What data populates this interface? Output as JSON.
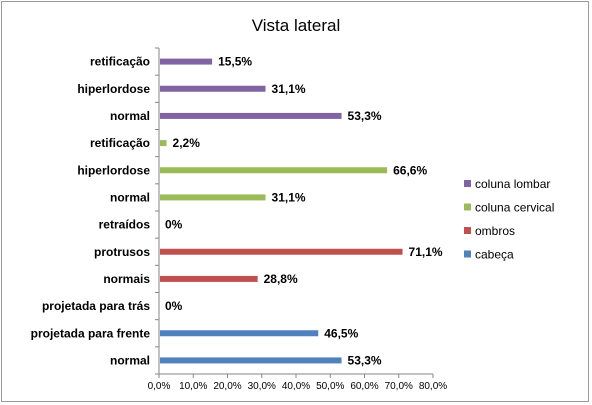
{
  "chart_data": {
    "type": "bar",
    "orientation": "horizontal",
    "title": "Vista lateral",
    "xlim": [
      0,
      80
    ],
    "xticks": [
      "0,0%",
      "10,0%",
      "20,0%",
      "30,0%",
      "40,0%",
      "50,0%",
      "60,0%",
      "70,0%",
      "80,0%"
    ],
    "grid": false,
    "legend_position": "right",
    "categories": [
      "retificação",
      "hiperlordose",
      "normal",
      "retificação",
      "hiperlordose",
      "normal",
      "retraídos",
      "protrusos",
      "normais",
      "projetada para trás",
      "projetada para frente",
      "normal"
    ],
    "series": [
      {
        "name": "coluna lombar",
        "color": "#8064a2",
        "values": [
          15.5,
          31.1,
          53.3,
          null,
          null,
          null,
          null,
          null,
          null,
          null,
          null,
          null
        ]
      },
      {
        "name": "coluna cervical",
        "color": "#9bbb59",
        "values": [
          null,
          null,
          null,
          2.2,
          66.6,
          31.1,
          null,
          null,
          null,
          null,
          null,
          null
        ]
      },
      {
        "name": "ombros",
        "color": "#c0504d",
        "values": [
          null,
          null,
          null,
          null,
          null,
          null,
          0,
          71.1,
          28.8,
          null,
          null,
          null
        ]
      },
      {
        "name": "cabeça",
        "color": "#4f81bd",
        "values": [
          null,
          null,
          null,
          null,
          null,
          null,
          null,
          null,
          null,
          0,
          46.5,
          53.3
        ]
      }
    ],
    "data_labels": [
      "15,5%",
      "31,1%",
      "53,3%",
      "2,2%",
      "66,6%",
      "31,1%",
      "0%",
      "71,1%",
      "28,8%",
      "0%",
      "46,5%",
      "53,3%"
    ],
    "legend_order": [
      "coluna lombar",
      "coluna cervical",
      "ombros",
      "cabeça"
    ]
  }
}
